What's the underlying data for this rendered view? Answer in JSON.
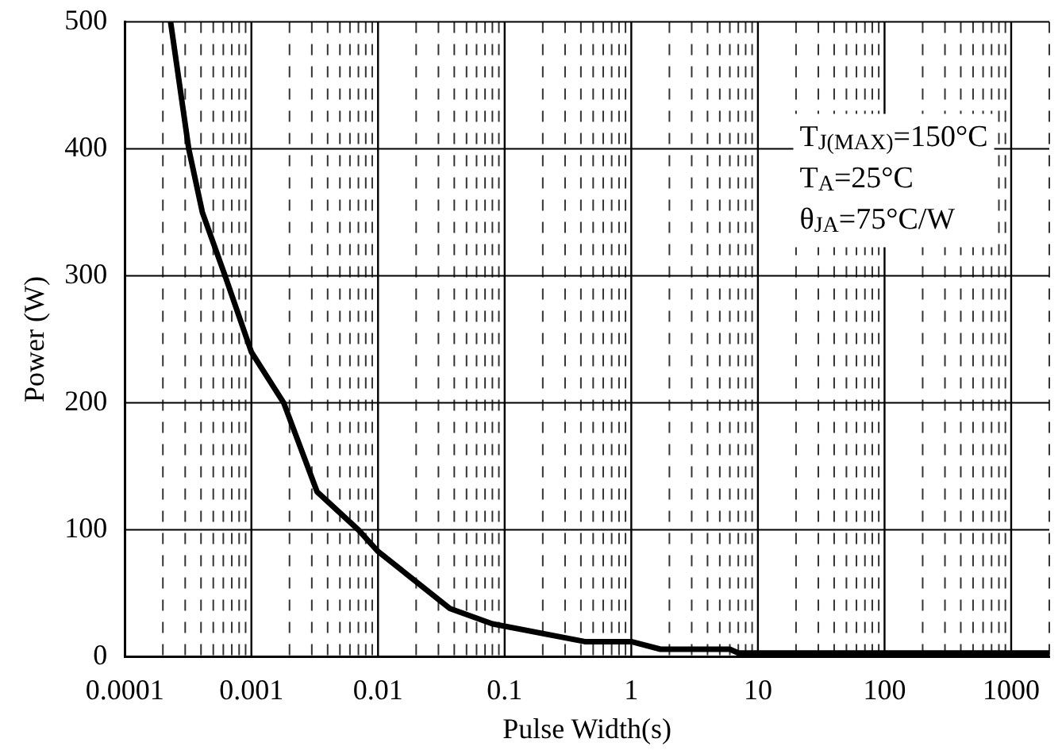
{
  "chart_data": {
    "type": "line",
    "xlabel": "Pulse Width(s)",
    "ylabel": "Power (W)",
    "x": [
      0.00023,
      0.00032,
      0.00041,
      0.00062,
      0.001,
      0.0018,
      0.0033,
      0.007,
      0.01,
      0.037,
      0.08,
      0.43,
      1,
      1.7,
      6,
      7,
      2000
    ],
    "series": [
      {
        "color": "#000000",
        "values": [
          500,
          400,
          350,
          300,
          240,
          200,
          130,
          100,
          83,
          38,
          26,
          12,
          12,
          6,
          6,
          3,
          3
        ]
      }
    ],
    "log": "x",
    "xlim": [
      0.0001,
      2000
    ],
    "ylim": [
      0,
      500
    ],
    "xticks": [
      0.0001,
      {
        "value": 0.0002,
        "label": null
      },
      {
        "value": 0.0003,
        "label": null
      },
      {
        "value": 0.0004,
        "label": null
      },
      {
        "value": 0.0005,
        "label": null
      },
      {
        "value": 0.0006,
        "label": null
      },
      {
        "value": 0.0007,
        "label": null
      },
      {
        "value": 0.0008,
        "label": null
      },
      {
        "value": 0.0009,
        "label": null
      },
      0.001,
      {
        "value": 0.002,
        "label": null
      },
      {
        "value": 0.003,
        "label": null
      },
      {
        "value": 0.004,
        "label": null
      },
      {
        "value": 0.005,
        "label": null
      },
      {
        "value": 0.006,
        "label": null
      },
      {
        "value": 0.007,
        "label": null
      },
      {
        "value": 0.008,
        "label": null
      },
      {
        "value": 0.009,
        "label": null
      },
      0.01,
      {
        "value": 0.02,
        "label": null
      },
      {
        "value": 0.03,
        "label": null
      },
      {
        "value": 0.04,
        "label": null
      },
      {
        "value": 0.05,
        "label": null
      },
      {
        "value": 0.06,
        "label": null
      },
      {
        "value": 0.07,
        "label": null
      },
      {
        "value": 0.08,
        "label": null
      },
      {
        "value": 0.09,
        "label": null
      },
      0.1,
      {
        "value": 0.2,
        "label": null
      },
      {
        "value": 0.3,
        "label": null
      },
      {
        "value": 0.4,
        "label": null
      },
      {
        "value": 0.5,
        "label": null
      },
      {
        "value": 0.6,
        "label": null
      },
      {
        "value": 0.7,
        "label": null
      },
      {
        "value": 0.8,
        "label": null
      },
      {
        "value": 0.9,
        "label": null
      },
      1,
      {
        "value": 2,
        "label": null
      },
      {
        "value": 3,
        "label": null
      },
      {
        "value": 4,
        "label": null
      },
      {
        "value": 5,
        "label": null
      },
      {
        "value": 6,
        "label": null
      },
      {
        "value": 7,
        "label": null
      },
      {
        "value": 8,
        "label": null
      },
      {
        "value": 9,
        "label": null
      },
      10,
      {
        "value": 20,
        "label": null
      },
      {
        "value": 30,
        "label": null
      },
      {
        "value": 40,
        "label": null
      },
      {
        "value": 50,
        "label": null
      },
      {
        "value": 60,
        "label": null
      },
      {
        "value": 70,
        "label": null
      },
      {
        "value": 80,
        "label": null
      },
      {
        "value": 90,
        "label": null
      },
      100,
      {
        "value": 200,
        "label": null
      },
      {
        "value": 300,
        "label": null
      },
      {
        "value": 400,
        "label": null
      },
      {
        "value": 500,
        "label": null
      },
      {
        "value": 600,
        "label": null
      },
      {
        "value": 700,
        "label": null
      },
      {
        "value": 800,
        "label": null
      },
      {
        "value": 900,
        "label": null
      },
      1000,
      {
        "value": 2000,
        "label": null
      }
    ],
    "yticks": [
      0,
      100,
      200,
      300,
      400,
      500
    ],
    "grid": true,
    "legend": false,
    "marker": "none",
    "line_style": "solid",
    "annotations": [
      "T$_{J(MAX)}$=150°C",
      "T$_{A}$=25°C",
      "θ$_{JA}$=75°C/W"
    ]
  }
}
